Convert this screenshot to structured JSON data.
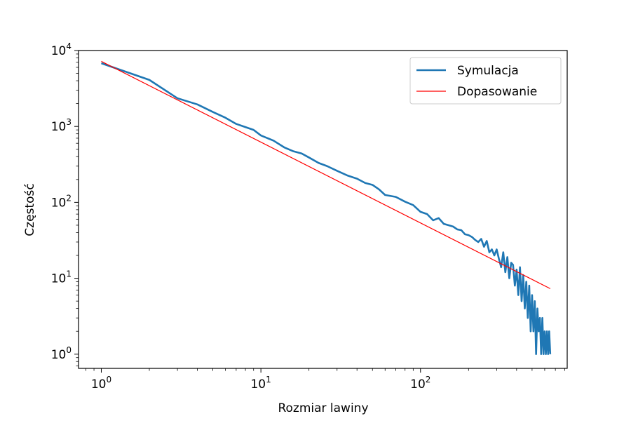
{
  "chart_data": {
    "type": "line",
    "title": "",
    "xlabel": "Rozmiar lawiny",
    "ylabel": "Częstość",
    "xscale": "log",
    "yscale": "log",
    "xlim": [
      0.72,
      830
    ],
    "ylim": [
      0.65,
      10000
    ],
    "grid": false,
    "legend_position": "top-right",
    "x_ticks": [
      {
        "base": "10",
        "exp": "0",
        "value": 1
      },
      {
        "base": "10",
        "exp": "1",
        "value": 10
      },
      {
        "base": "10",
        "exp": "2",
        "value": 100
      }
    ],
    "y_ticks": [
      {
        "base": "10",
        "exp": "0",
        "value": 1
      },
      {
        "base": "10",
        "exp": "1",
        "value": 10
      },
      {
        "base": "10",
        "exp": "2",
        "value": 100
      },
      {
        "base": "10",
        "exp": "3",
        "value": 1000
      },
      {
        "base": "10",
        "exp": "4",
        "value": 10000
      }
    ],
    "series": [
      {
        "name": "Symulacja",
        "color": "#1f77b4",
        "x": [
          1,
          2,
          3,
          4,
          5,
          6,
          7,
          8,
          9,
          10,
          12,
          14,
          16,
          18,
          20,
          23,
          26,
          30,
          35,
          40,
          45,
          50,
          55,
          60,
          70,
          80,
          90,
          100,
          110,
          120,
          130,
          140,
          150,
          160,
          170,
          180,
          190,
          200,
          210,
          220,
          230,
          240,
          250,
          260,
          270,
          280,
          290,
          300,
          310,
          320,
          330,
          340,
          350,
          360,
          370,
          380,
          390,
          400,
          410,
          420,
          430,
          440,
          450,
          460,
          470,
          480,
          490,
          500,
          510,
          520,
          530,
          540,
          550,
          560,
          570,
          580,
          590,
          600,
          610,
          620,
          630,
          640,
          650
        ],
        "y": [
          6800,
          4100,
          2350,
          1950,
          1550,
          1300,
          1080,
          980,
          900,
          760,
          650,
          530,
          470,
          440,
          390,
          330,
          300,
          260,
          225,
          205,
          180,
          170,
          148,
          125,
          118,
          102,
          92,
          75,
          70,
          58,
          62,
          52,
          50,
          48,
          44,
          43,
          38,
          37,
          35,
          32,
          30,
          33,
          26,
          31,
          22,
          24,
          20,
          24,
          18,
          14,
          22,
          12,
          19,
          10,
          16,
          15,
          8,
          13,
          6,
          14,
          5,
          11,
          4,
          9,
          3,
          8,
          2,
          6,
          2,
          5,
          1,
          4,
          2,
          3,
          1,
          3,
          1,
          2,
          1,
          2,
          1,
          2,
          1
        ]
      },
      {
        "name": "Dopasowanie",
        "color": "#ff0000",
        "x": [
          1,
          650
        ],
        "y": [
          7200,
          7.3
        ]
      }
    ]
  }
}
